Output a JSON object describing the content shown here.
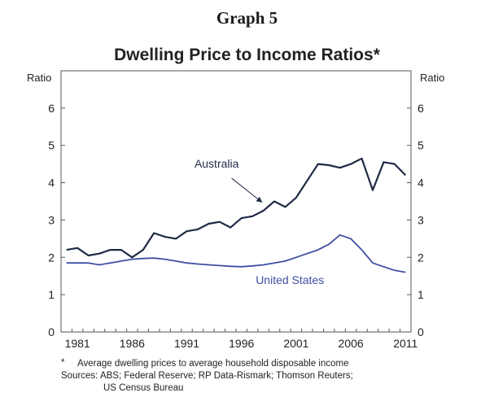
{
  "header": {
    "graph_label": "Graph 5"
  },
  "chart_data": {
    "type": "line",
    "title": "Dwelling Price to Income Ratios*",
    "ylabel_left": "Ratio",
    "ylabel_right": "Ratio",
    "ylim": [
      0,
      7
    ],
    "yticks": [
      "0",
      "1",
      "2",
      "3",
      "4",
      "5",
      "6"
    ],
    "xlim": [
      1980,
      2012
    ],
    "xticks": [
      "1981",
      "1986",
      "1991",
      "1996",
      "2001",
      "2006",
      "2011"
    ],
    "grid": false,
    "series": [
      {
        "name": "Australia",
        "color": "#1f2a44",
        "x": [
          1980.5,
          1981.5,
          1982.5,
          1983.5,
          1984.5,
          1985.5,
          1986.5,
          1987.5,
          1988.5,
          1989.5,
          1990.5,
          1991.5,
          1992.5,
          1993.5,
          1994.5,
          1995.5,
          1996.5,
          1997.5,
          1998.5,
          1999.5,
          2000.5,
          2001.5,
          2002.5,
          2003.5,
          2004.5,
          2005.5,
          2006.5,
          2007.5,
          2008.5,
          2009.5,
          2010.5,
          2011.5
        ],
        "y": [
          2.2,
          2.25,
          2.05,
          2.1,
          2.2,
          2.2,
          2.0,
          2.2,
          2.65,
          2.55,
          2.5,
          2.7,
          2.75,
          2.9,
          2.95,
          2.8,
          3.05,
          3.1,
          3.25,
          3.5,
          3.35,
          3.6,
          4.05,
          4.5,
          4.47,
          4.4,
          4.5,
          4.65,
          3.8,
          4.55,
          4.5,
          4.2
        ]
      },
      {
        "name": "United States",
        "color": "#3f4fa3",
        "x": [
          1980.5,
          1981.5,
          1982.5,
          1983.5,
          1984.5,
          1985.5,
          1986.5,
          1987.5,
          1988.5,
          1989.5,
          1990.5,
          1991.5,
          1992.5,
          1993.5,
          1994.5,
          1995.5,
          1996.5,
          1997.5,
          1998.5,
          1999.5,
          2000.5,
          2001.5,
          2002.5,
          2003.5,
          2004.5,
          2005.5,
          2006.5,
          2007.5,
          2008.5,
          2009.5,
          2010.5,
          2011.5
        ],
        "y": [
          1.85,
          1.85,
          1.85,
          1.8,
          1.85,
          1.9,
          1.95,
          1.97,
          1.98,
          1.95,
          1.9,
          1.85,
          1.82,
          1.8,
          1.78,
          1.76,
          1.75,
          1.77,
          1.8,
          1.85,
          1.9,
          2.0,
          2.1,
          2.2,
          2.35,
          2.6,
          2.5,
          2.2,
          1.85,
          1.75,
          1.65,
          1.6
        ]
      }
    ],
    "annotations": [
      {
        "label": "Australia",
        "color": "#1f2a44"
      },
      {
        "label": "United States",
        "color": "#3f4fa3"
      }
    ]
  },
  "notes": {
    "footnote_star": "*",
    "footnote_text": "Average dwelling prices to average household disposable income",
    "sources_line1": "Sources: ABS; Federal Reserve; RP Data-Rismark; Thomson Reuters;",
    "sources_line2": "US Census Bureau"
  }
}
